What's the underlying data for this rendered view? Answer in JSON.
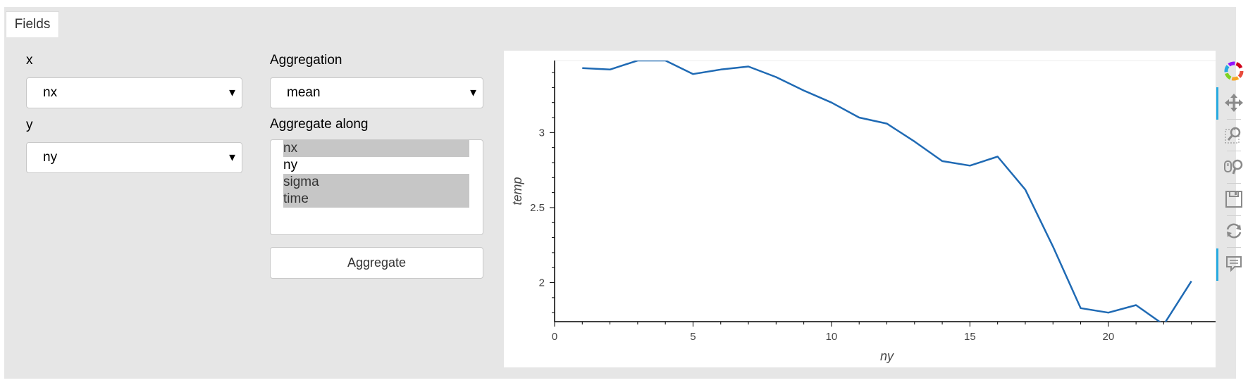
{
  "tabs": [
    {
      "label": "Fields"
    }
  ],
  "fields": {
    "x": {
      "label": "x",
      "value": "nx"
    },
    "y": {
      "label": "y",
      "value": "ny"
    },
    "aggregation": {
      "label": "Aggregation",
      "value": "mean"
    },
    "aggregate_along": {
      "label": "Aggregate along",
      "options": [
        {
          "label": "nx",
          "selected": true
        },
        {
          "label": "ny",
          "selected": false
        },
        {
          "label": "sigma",
          "selected": true
        },
        {
          "label": "time",
          "selected": true
        }
      ]
    },
    "aggregate_button": "Aggregate"
  },
  "toolbar": {
    "tools": [
      "bokeh-logo-icon",
      "pan-icon",
      "box-zoom-icon",
      "wheel-zoom-icon",
      "save-icon",
      "reset-icon",
      "hover-icon"
    ],
    "active": [
      "pan-icon",
      "hover-icon"
    ]
  },
  "colors": {
    "line": "#1f6ab4",
    "panel": "#e6e6e6",
    "active_tool": "#26aae1"
  },
  "chart_data": {
    "type": "line",
    "xlabel": "ny",
    "ylabel": "temp",
    "xlim": [
      0,
      24
    ],
    "ylim": [
      1.74,
      3.48
    ],
    "x_ticks": [
      0,
      5,
      10,
      15,
      20
    ],
    "y_ticks": [
      2,
      2.5,
      3
    ],
    "series": [
      {
        "x": [
          1,
          2,
          3,
          4,
          5,
          6,
          7,
          8,
          9,
          10,
          11,
          12,
          13,
          14,
          15,
          16,
          17,
          18,
          19,
          20,
          21,
          22,
          23
        ],
        "y": [
          3.43,
          3.42,
          3.48,
          3.48,
          3.39,
          3.42,
          3.44,
          3.37,
          3.28,
          3.2,
          3.1,
          3.06,
          2.94,
          2.81,
          2.78,
          2.84,
          2.62,
          2.24,
          1.83,
          1.8,
          1.85,
          1.72,
          2.01
        ]
      }
    ],
    "grid": false,
    "legend": "none"
  }
}
